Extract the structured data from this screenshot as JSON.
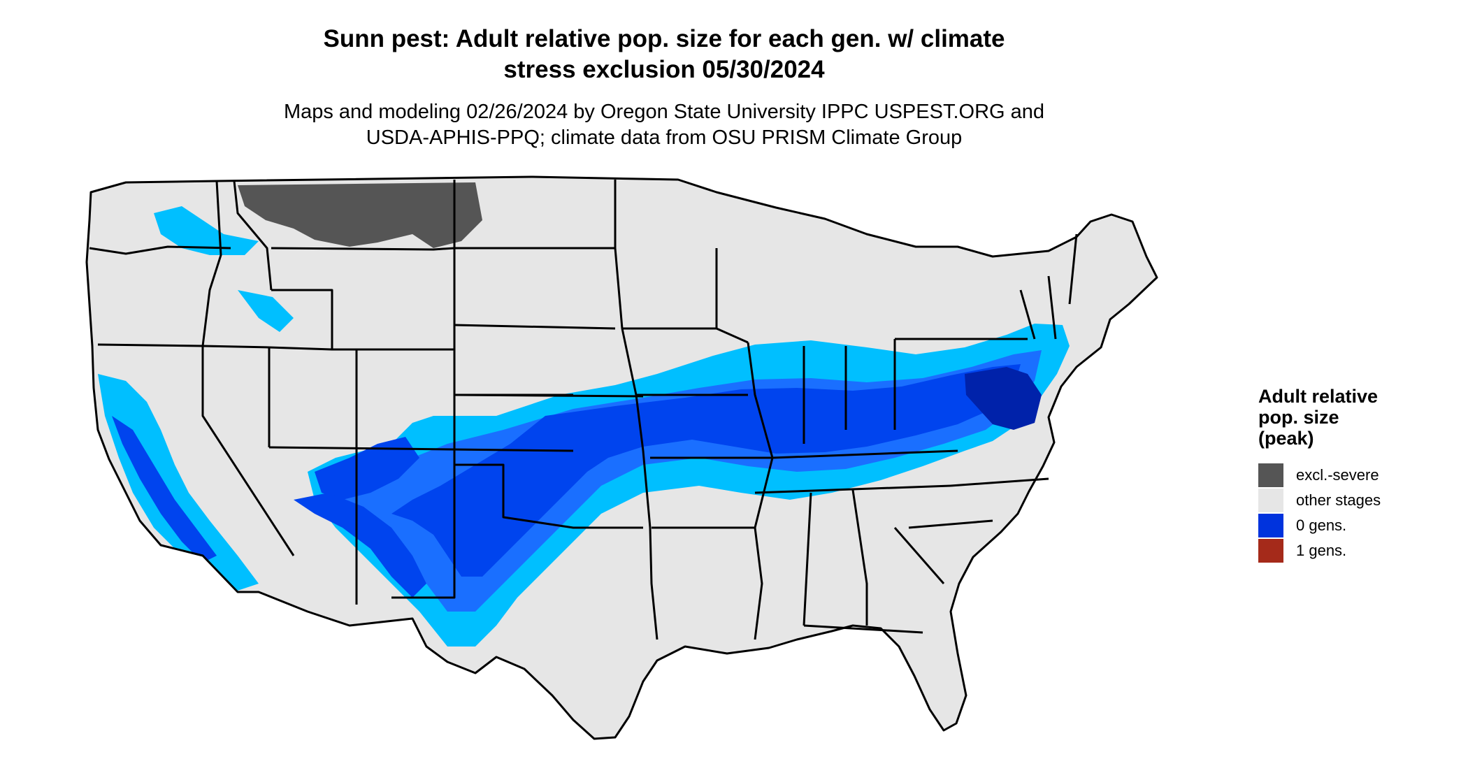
{
  "title_line1": "Sunn pest: Adult relative pop. size for each gen. w/ climate",
  "title_line2": "stress exclusion 05/30/2024",
  "subtitle_line1": "Maps and modeling 02/26/2024 by Oregon State University IPPC USPEST.ORG and",
  "subtitle_line2": "USDA-APHIS-PPQ; climate data from OSU PRISM Climate Group",
  "legend": {
    "title_line1": "Adult relative",
    "title_line2": "pop. size",
    "title_line3": "(peak)",
    "items": [
      {
        "label": "excl.-severe",
        "color": "#555555"
      },
      {
        "label": "other stages",
        "color": "#e6e6e6"
      },
      {
        "label": "0 gens.",
        "color": "#0033dd"
      },
      {
        "label": "1 gens.",
        "color": "#a52a1a"
      }
    ]
  },
  "map_colors": {
    "land": "#e6e6e6",
    "border": "#000000",
    "excluded": "#555555",
    "light_blue": "#00bfff",
    "mid_blue": "#1a6fff",
    "blue": "#0044ee",
    "dark_blue": "#0022aa"
  }
}
